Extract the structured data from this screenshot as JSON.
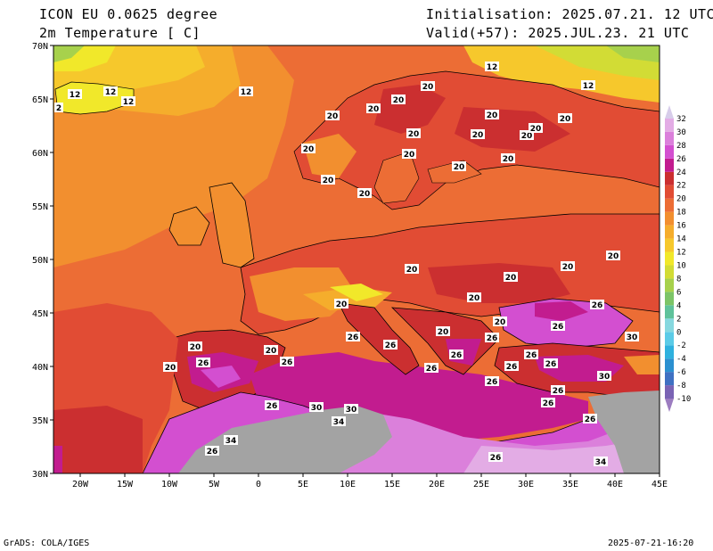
{
  "header": {
    "model": "ICON EU 0.0625 degree",
    "variable": "2m Temperature [ C]",
    "init": "Initialisation: 2025.07.21. 12 UTC",
    "valid": "Valid(+57): 2025.JUL.23. 21 UTC"
  },
  "footer": {
    "left": "GrADS: COLA/IGES",
    "right": "2025-07-21-16:20"
  },
  "axes": {
    "lat_ticks": [
      "70N",
      "65N",
      "60N",
      "55N",
      "50N",
      "45N",
      "40N",
      "35N",
      "30N"
    ],
    "lon_ticks": [
      "20W",
      "15W",
      "10W",
      "5W",
      "0",
      "5E",
      "10E",
      "15E",
      "20E",
      "25E",
      "30E",
      "35E",
      "40E",
      "45E"
    ],
    "lon_range": [
      -23,
      45
    ],
    "lat_range": [
      30,
      70
    ]
  },
  "colorbar": {
    "levels": [
      "-10",
      "-8",
      "-6",
      "-4",
      "-2",
      "0",
      "2",
      "4",
      "6",
      "8",
      "10",
      "12",
      "14",
      "16",
      "18",
      "20",
      "22",
      "24",
      "26",
      "28",
      "30",
      "32"
    ],
    "colors": [
      "#9c7cc0",
      "#7a63b4",
      "#3f70c2",
      "#2b90d0",
      "#2fb1de",
      "#5bcbe7",
      "#86d8df",
      "#5fc29b",
      "#7cc467",
      "#a7d14c",
      "#d2dc35",
      "#f1e82a",
      "#f6c82c",
      "#f5ad2c",
      "#f28f2f",
      "#ec6d35",
      "#e14c34",
      "#cb2f30",
      "#c21c8f",
      "#d34fd0",
      "#db80db",
      "#e3ace5",
      "#d7cdea"
    ]
  },
  "legend_colors": {
    "land_mask": "#a3a3a3",
    "coast": "#000000"
  },
  "isotherm_labels": [
    "12",
    "12",
    "12",
    "12",
    "12",
    "12",
    "2",
    "20",
    "20",
    "20",
    "20",
    "20",
    "20",
    "20",
    "20",
    "20",
    "20",
    "20",
    "20",
    "20",
    "20",
    "20",
    "20",
    "20",
    "20",
    "20",
    "20",
    "20",
    "20",
    "20",
    "20",
    "20",
    "20",
    "20",
    "26",
    "26",
    "26",
    "26",
    "26",
    "26",
    "26",
    "26",
    "26",
    "26",
    "26",
    "26",
    "26",
    "26",
    "26",
    "26",
    "26",
    "26",
    "26",
    "30",
    "30",
    "30",
    "30",
    "34",
    "34",
    "34"
  ]
}
